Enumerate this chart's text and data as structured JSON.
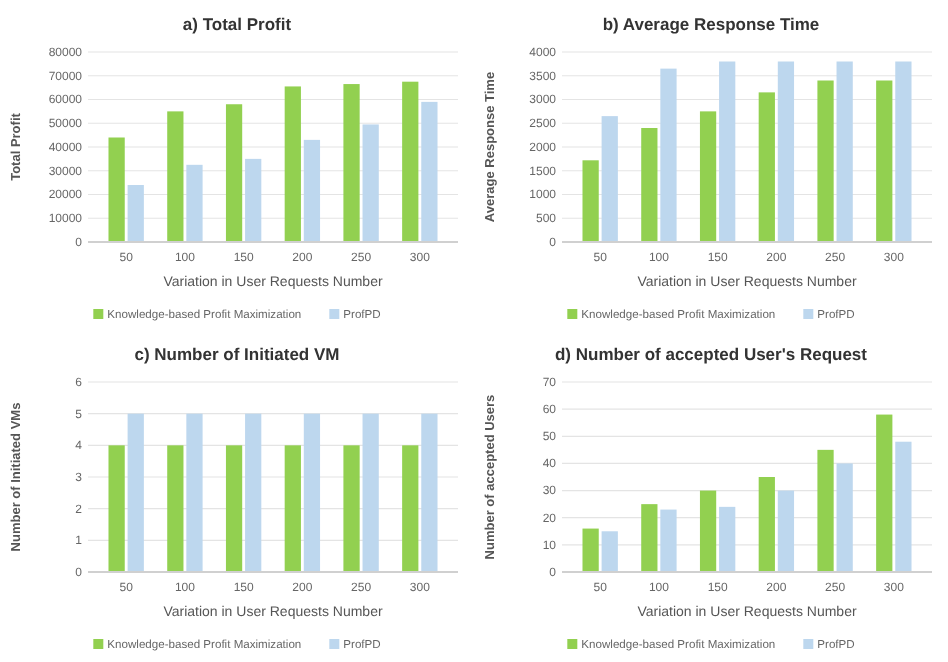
{
  "chart_data": [
    {
      "type": "bar",
      "title": "a) Total Profit",
      "xlabel": "Variation in User Requests Number",
      "ylabel": "Total Profit",
      "categories": [
        "50",
        "100",
        "150",
        "200",
        "250",
        "300"
      ],
      "series": [
        {
          "name": "Knowledge-based Profit Maximization",
          "color": "#92d050",
          "values": [
            44000,
            55000,
            58000,
            65500,
            66500,
            67500
          ]
        },
        {
          "name": "ProfPD",
          "color": "#bdd7ee",
          "values": [
            24000,
            32500,
            35000,
            43000,
            49500,
            59000
          ]
        }
      ],
      "ylim": [
        0,
        80000
      ],
      "yticks": [
        0,
        10000,
        20000,
        30000,
        40000,
        50000,
        60000,
        70000,
        80000
      ],
      "grid": "y",
      "legend": "bottom"
    },
    {
      "type": "bar",
      "title": "b) Average Response Time",
      "xlabel": "Variation in User Requests Number",
      "ylabel": "Average Response Time",
      "categories": [
        "50",
        "100",
        "150",
        "200",
        "250",
        "300"
      ],
      "series": [
        {
          "name": "Knowledge-based Profit Maximization",
          "color": "#92d050",
          "values": [
            1720,
            2400,
            2750,
            3150,
            3400,
            3400
          ]
        },
        {
          "name": "ProfPD",
          "color": "#bdd7ee",
          "values": [
            2650,
            3650,
            3800,
            3800,
            3800,
            3800
          ]
        }
      ],
      "ylim": [
        0,
        4000
      ],
      "yticks": [
        0,
        500,
        1000,
        1500,
        2000,
        2500,
        3000,
        3500,
        4000
      ],
      "grid": "y",
      "legend": "bottom"
    },
    {
      "type": "bar",
      "title": "c) Number of Initiated VM",
      "xlabel": "Variation in User Requests Number",
      "ylabel": "Number of Initiated VMs",
      "categories": [
        "50",
        "100",
        "150",
        "200",
        "250",
        "300"
      ],
      "series": [
        {
          "name": "Knowledge-based Profit Maximization",
          "color": "#92d050",
          "values": [
            4,
            4,
            4,
            4,
            4,
            4
          ]
        },
        {
          "name": "ProfPD",
          "color": "#bdd7ee",
          "values": [
            5,
            5,
            5,
            5,
            5,
            5
          ]
        }
      ],
      "ylim": [
        0,
        6
      ],
      "yticks": [
        0,
        1,
        2,
        3,
        4,
        5,
        6
      ],
      "grid": "y",
      "legend": "bottom"
    },
    {
      "type": "bar",
      "title": "d) Number of accepted User's Request",
      "xlabel": "Variation in User Requests Number",
      "ylabel": "Number of accepted Users",
      "categories": [
        "50",
        "100",
        "150",
        "200",
        "250",
        "300"
      ],
      "series": [
        {
          "name": "Knowledge-based Profit Maximization",
          "color": "#92d050",
          "values": [
            16,
            25,
            30,
            35,
            45,
            58
          ]
        },
        {
          "name": "ProfPD",
          "color": "#bdd7ee",
          "values": [
            15,
            23,
            24,
            30,
            40,
            48
          ]
        }
      ],
      "ylim": [
        0,
        70
      ],
      "yticks": [
        0,
        10,
        20,
        30,
        40,
        50,
        60,
        70
      ],
      "grid": "y",
      "legend": "bottom"
    }
  ]
}
